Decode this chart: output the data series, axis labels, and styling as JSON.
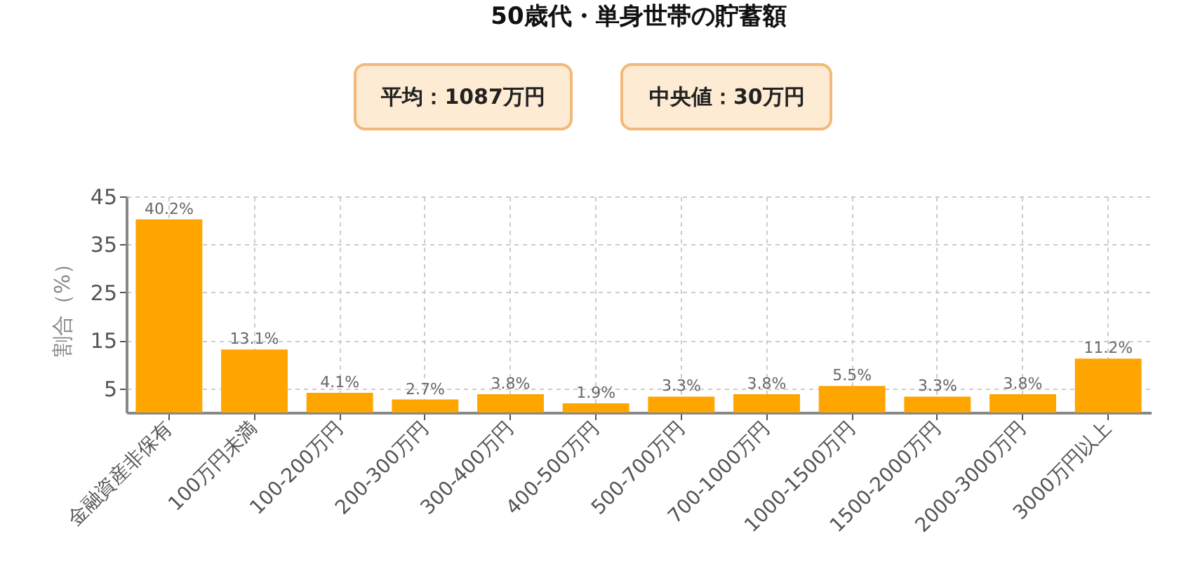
{
  "chart_data": {
    "type": "bar",
    "title": "50歳代・単身世帯の貯蓄額",
    "annotations": [
      "平均：1087万円",
      "中央値：30万円"
    ],
    "ylabel": "割合（%）",
    "categories": [
      "金融資産非保有",
      "100万円未満",
      "100-200万円",
      "200-300万円",
      "300-400万円",
      "400-500万円",
      "500-700万円",
      "700-1000万円",
      "1000-1500万円",
      "1500-2000万円",
      "2000-3000万円",
      "3000万円以上"
    ],
    "values": [
      40.2,
      13.1,
      4.1,
      2.7,
      3.8,
      1.9,
      3.3,
      3.8,
      5.5,
      3.3,
      3.8,
      11.2
    ],
    "value_labels": [
      "40.2%",
      "13.1%",
      "4.1%",
      "2.7%",
      "3.8%",
      "1.9%",
      "3.3%",
      "3.8%",
      "5.5%",
      "3.3%",
      "3.8%",
      "11.2%"
    ],
    "color": "#ffa500",
    "ylim": [
      0,
      45
    ],
    "yticks": [
      5,
      15,
      25,
      35,
      45
    ],
    "grid": true
  }
}
